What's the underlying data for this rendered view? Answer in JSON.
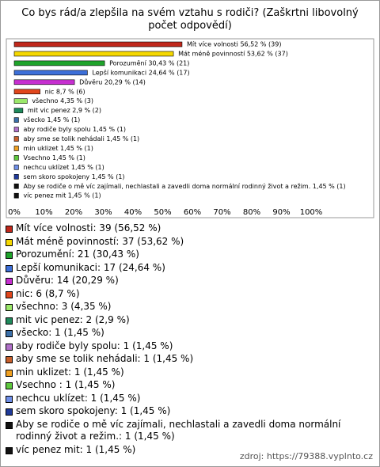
{
  "chart_data": {
    "type": "bar",
    "orientation": "horizontal",
    "title": "Co bys rád/a zlepšila na svém vztahu s rodiči? (Zaškrtni libovolný počet odpovědí)",
    "values": [
      56.52,
      53.62,
      30.43,
      24.64,
      20.29,
      8.7,
      4.35,
      2.9,
      1.45,
      1.45,
      1.45,
      1.45,
      1.45,
      1.45,
      1.45,
      1.45,
      1.45
    ],
    "value_labels": [
      "Mít více volnosti 56,52 % (39)",
      "Mát méně povinností 53,62 % (37)",
      "Porozumění 30,43 % (21)",
      "Lepší komunikaci 24,64 % (17)",
      "Důvěru 20,29 % (14)",
      "nic 8,7 % (6)",
      "všechno 4,35 % (3)",
      "mit vic penez 2,9 % (2)",
      "všecko 1,45 % (1)",
      "aby rodiče byly spolu 1,45 % (1)",
      "aby sme se tolik nehádali 1,45 % (1)",
      "min uklizet 1,45 % (1)",
      "Vsechno  1,45 % (1)",
      "nechcu uklízet 1,45 % (1)",
      "sem skoro spokojeny 1,45 % (1)",
      "Aby se rodiče o mě víc zajímali, nechlastali a zavedli doma normální rodinný život a režim. 1,45 % (1)",
      "víc penez mit 1,45 % (1)"
    ],
    "legend_labels": [
      "Mít více volnosti: 39 (56,52 %)",
      "Mát méně povinností: 37 (53,62 %)",
      "Porozumění: 21 (30,43 %)",
      "Lepší komunikaci: 17 (24,64 %)",
      "Důvěru: 14 (20,29 %)",
      "nic: 6 (8,7 %)",
      "všechno: 3 (4,35 %)",
      "mit vic penez: 2 (2,9 %)",
      "všecko: 1 (1,45 %)",
      "aby rodiče byly spolu: 1 (1,45 %)",
      "aby sme se tolik nehádali: 1 (1,45 %)",
      "min uklizet: 1 (1,45 %)",
      "Vsechno : 1 (1,45 %)",
      "nechcu uklízet: 1 (1,45 %)",
      "sem skoro spokojeny: 1 (1,45 %)",
      "Aby se rodiče o mě víc zajímali, nechlastali a zavedli doma normální rodinný život a režim.: 1 (1,45 %)",
      "víc penez mit: 1 (1,45 %)"
    ],
    "colors": [
      "#c0281c",
      "#f5d800",
      "#1fa32b",
      "#3d6fd8",
      "#c62fd0",
      "#e0461c",
      "#9be86a",
      "#1f8a5c",
      "#3a6fa8",
      "#b070c8",
      "#c8602c",
      "#f0a020",
      "#5ec83e",
      "#6f8fe8",
      "#1f3a9a",
      "#111111",
      "#111111"
    ],
    "xlim": [
      0,
      100
    ],
    "xticks": [
      {
        "value": 0,
        "label": "0%"
      },
      {
        "value": 10,
        "label": "10%"
      },
      {
        "value": 20,
        "label": "20%"
      },
      {
        "value": 30,
        "label": "30%"
      },
      {
        "value": 40,
        "label": "40%"
      },
      {
        "value": 50,
        "label": "50%"
      },
      {
        "value": 60,
        "label": "60%"
      },
      {
        "value": 70,
        "label": "70%"
      },
      {
        "value": 80,
        "label": "80%"
      },
      {
        "value": 90,
        "label": "90%"
      },
      {
        "value": 100,
        "label": "100%"
      }
    ],
    "source": "zdroj: https://79388.vyplnto.cz"
  }
}
